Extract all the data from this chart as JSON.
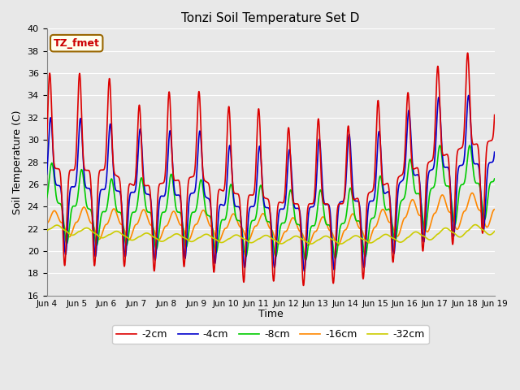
{
  "title": "Tonzi Soil Temperature Set D",
  "xlabel": "Time",
  "ylabel": "Soil Temperature (C)",
  "ylim": [
    16,
    40
  ],
  "yticks": [
    16,
    18,
    20,
    22,
    24,
    26,
    28,
    30,
    32,
    34,
    36,
    38,
    40
  ],
  "annotation_text": "TZ_fmet",
  "annotation_color": "#cc0000",
  "annotation_bg": "#ffffee",
  "annotation_border": "#996600",
  "bg_color": "#e8e8e8",
  "plot_bg": "#e8e8e8",
  "grid_color": "#ffffff",
  "legend_entries": [
    "-2cm",
    "-4cm",
    "-8cm",
    "-16cm",
    "-32cm"
  ],
  "line_colors": [
    "#dd0000",
    "#0000cc",
    "#00cc00",
    "#ff8800",
    "#cccc00"
  ],
  "line_widths": [
    1.2,
    1.2,
    1.2,
    1.2,
    1.2
  ],
  "x_tick_labels": [
    "Jun 4",
    "Jun 5",
    "Jun 6",
    "Jun 7",
    "Jun 8",
    "Jun 9",
    "Jun 10",
    "Jun 11",
    "Jun 12",
    "Jun 13",
    "Jun 14",
    "Jun 15",
    "Jun 16",
    "Jun 17",
    "Jun 18",
    "Jun 19"
  ],
  "n_days": 15,
  "figsize": [
    6.4,
    4.8
  ],
  "dpi": 100
}
